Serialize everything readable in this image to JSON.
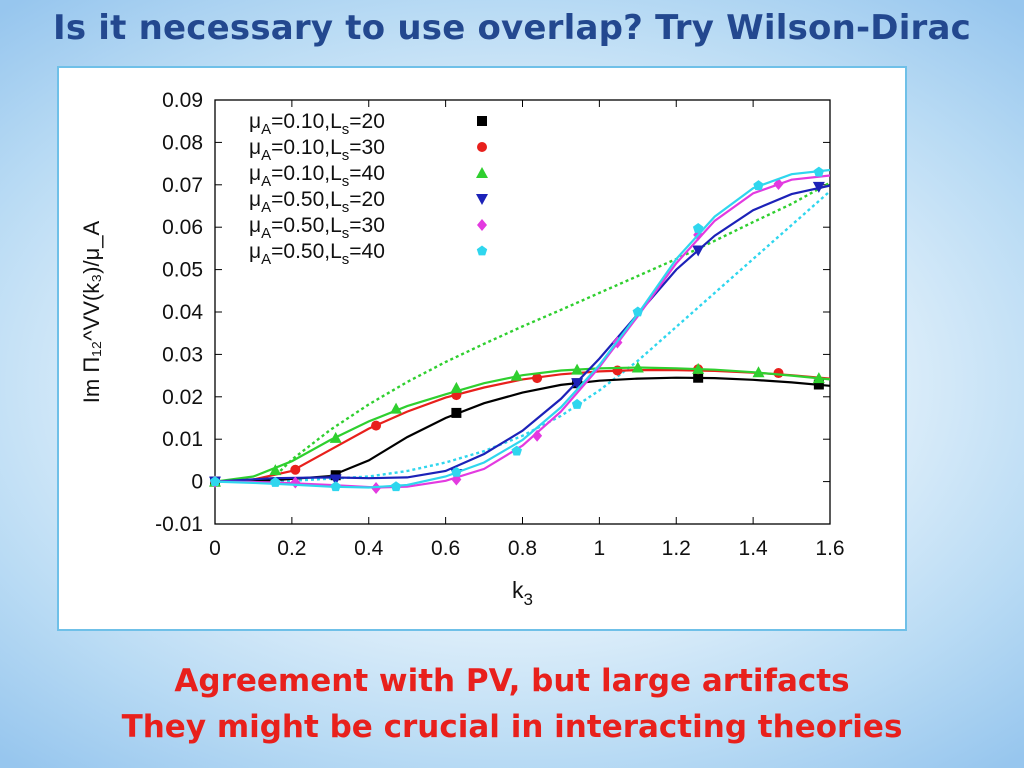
{
  "slide": {
    "title": "Is it necessary to use overlap? Try Wilson-Dirac",
    "caption_lines": [
      "Agreement with PV, but large artifacts",
      "They might be crucial in interacting theories"
    ]
  },
  "chart_data": {
    "type": "line",
    "xlabel_main": "k",
    "xlabel_sub": "3",
    "ylabel": "Im Π₁₂^VV(k₃)/μ_A",
    "xlim": [
      0,
      1.6
    ],
    "ylim": [
      -0.01,
      0.09
    ],
    "xticks": [
      "0",
      "0.2",
      "0.4",
      "0.6",
      "0.8",
      "1",
      "1.2",
      "1.4",
      "1.6"
    ],
    "yticks": [
      "-0.01",
      "0",
      "0.01",
      "0.02",
      "0.03",
      "0.04",
      "0.05",
      "0.06",
      "0.07",
      "0.08",
      "0.09"
    ],
    "grid": false,
    "legend_position": "top-left",
    "series": [
      {
        "name": "μA=0.10,Ls=20",
        "label_parts": {
          "mu_sub": "A",
          "mu_val": "=0.10,L",
          "l_sub": "s",
          "l_val": "=20"
        },
        "color": "#000000",
        "marker": "square",
        "points": [
          [
            0,
            0
          ],
          [
            0.314,
            0.0015
          ],
          [
            0.628,
            0.0162
          ],
          [
            0.942,
            0.0232
          ],
          [
            1.257,
            0.0245
          ],
          [
            1.571,
            0.0229
          ]
        ],
        "curve": [
          [
            0,
            0
          ],
          [
            0.15,
            0.0003
          ],
          [
            0.3,
            0.0013
          ],
          [
            0.4,
            0.005
          ],
          [
            0.5,
            0.0105
          ],
          [
            0.6,
            0.015
          ],
          [
            0.7,
            0.0185
          ],
          [
            0.8,
            0.021
          ],
          [
            0.9,
            0.0228
          ],
          [
            1.0,
            0.0238
          ],
          [
            1.1,
            0.0243
          ],
          [
            1.2,
            0.0245
          ],
          [
            1.3,
            0.0244
          ],
          [
            1.4,
            0.024
          ],
          [
            1.5,
            0.0234
          ],
          [
            1.6,
            0.0226
          ]
        ]
      },
      {
        "name": "μA=0.10,Ls=30",
        "label_parts": {
          "mu_sub": "A",
          "mu_val": "=0.10,L",
          "l_sub": "s",
          "l_val": "=30"
        },
        "color": "#e8201c",
        "marker": "circle",
        "points": [
          [
            0,
            0
          ],
          [
            0.209,
            0.0028
          ],
          [
            0.419,
            0.0132
          ],
          [
            0.628,
            0.0204
          ],
          [
            0.838,
            0.0244
          ],
          [
            1.047,
            0.0262
          ],
          [
            1.257,
            0.0265
          ],
          [
            1.466,
            0.0256
          ]
        ],
        "curve": [
          [
            0,
            0
          ],
          [
            0.1,
            0.0005
          ],
          [
            0.2,
            0.0025
          ],
          [
            0.3,
            0.0075
          ],
          [
            0.4,
            0.0125
          ],
          [
            0.5,
            0.0165
          ],
          [
            0.6,
            0.0198
          ],
          [
            0.7,
            0.0222
          ],
          [
            0.8,
            0.0241
          ],
          [
            0.9,
            0.0253
          ],
          [
            1.0,
            0.026
          ],
          [
            1.1,
            0.0263
          ],
          [
            1.2,
            0.0263
          ],
          [
            1.3,
            0.0261
          ],
          [
            1.4,
            0.0257
          ],
          [
            1.5,
            0.0251
          ],
          [
            1.6,
            0.0243
          ]
        ]
      },
      {
        "name": "μA=0.10,Ls=40",
        "label_parts": {
          "mu_sub": "A",
          "mu_val": "=0.10,L",
          "l_sub": "s",
          "l_val": "=40"
        },
        "color": "#2fcf2f",
        "marker": "triangle-up",
        "points": [
          [
            0,
            0
          ],
          [
            0.157,
            0.0027
          ],
          [
            0.314,
            0.0103
          ],
          [
            0.471,
            0.0172
          ],
          [
            0.628,
            0.0221
          ],
          [
            0.785,
            0.025
          ],
          [
            0.942,
            0.0264
          ],
          [
            1.1,
            0.0269
          ],
          [
            1.257,
            0.0266
          ],
          [
            1.414,
            0.0258
          ],
          [
            1.571,
            0.0244
          ]
        ],
        "curve": [
          [
            0,
            0
          ],
          [
            0.1,
            0.0012
          ],
          [
            0.2,
            0.0048
          ],
          [
            0.3,
            0.0098
          ],
          [
            0.4,
            0.0142
          ],
          [
            0.5,
            0.0178
          ],
          [
            0.6,
            0.0206
          ],
          [
            0.7,
            0.0232
          ],
          [
            0.8,
            0.0251
          ],
          [
            0.9,
            0.0262
          ],
          [
            1.0,
            0.0267
          ],
          [
            1.1,
            0.0269
          ],
          [
            1.2,
            0.0267
          ],
          [
            1.3,
            0.0264
          ],
          [
            1.4,
            0.0258
          ],
          [
            1.5,
            0.025
          ],
          [
            1.6,
            0.0241
          ]
        ]
      },
      {
        "name": "μA=0.50,Ls=20",
        "label_parts": {
          "mu_sub": "A",
          "mu_val": "=0.50,L",
          "l_sub": "s",
          "l_val": "=20"
        },
        "color": "#1c22b8",
        "marker": "triangle-down",
        "points": [
          [
            0,
            0
          ],
          [
            0.314,
            0.0005
          ],
          [
            0.628,
            0.0018
          ],
          [
            0.942,
            0.0232
          ],
          [
            1.257,
            0.0545
          ],
          [
            1.571,
            0.0695
          ]
        ],
        "curve": [
          [
            0,
            0
          ],
          [
            0.15,
            0.0008
          ],
          [
            0.3,
            0.001
          ],
          [
            0.4,
            0.0008
          ],
          [
            0.5,
            0.001
          ],
          [
            0.6,
            0.0025
          ],
          [
            0.7,
            0.0065
          ],
          [
            0.8,
            0.012
          ],
          [
            0.9,
            0.0195
          ],
          [
            1.0,
            0.029
          ],
          [
            1.1,
            0.0395
          ],
          [
            1.2,
            0.05
          ],
          [
            1.3,
            0.058
          ],
          [
            1.4,
            0.064
          ],
          [
            1.5,
            0.0678
          ],
          [
            1.6,
            0.0698
          ]
        ]
      },
      {
        "name": "μA=0.50,Ls=30",
        "label_parts": {
          "mu_sub": "A",
          "mu_val": "=0.50,L",
          "l_sub": "s",
          "l_val": "=30"
        },
        "color": "#e33ae0",
        "marker": "diamond",
        "points": [
          [
            0,
            0
          ],
          [
            0.209,
            -0.0002
          ],
          [
            0.419,
            -0.0015
          ],
          [
            0.628,
            0.0005
          ],
          [
            0.838,
            0.0108
          ],
          [
            1.047,
            0.0328
          ],
          [
            1.257,
            0.0582
          ],
          [
            1.466,
            0.0702
          ]
        ],
        "curve": [
          [
            0,
            0
          ],
          [
            0.15,
            -0.0002
          ],
          [
            0.3,
            -0.0008
          ],
          [
            0.42,
            -0.0014
          ],
          [
            0.5,
            -0.0012
          ],
          [
            0.6,
            0.0002
          ],
          [
            0.7,
            0.003
          ],
          [
            0.8,
            0.0085
          ],
          [
            0.9,
            0.0165
          ],
          [
            1.0,
            0.027
          ],
          [
            1.1,
            0.039
          ],
          [
            1.2,
            0.0515
          ],
          [
            1.3,
            0.0615
          ],
          [
            1.4,
            0.068
          ],
          [
            1.5,
            0.0712
          ],
          [
            1.6,
            0.0722
          ]
        ]
      },
      {
        "name": "μA=0.50,Ls=40",
        "label_parts": {
          "mu_sub": "A",
          "mu_val": "=0.50,L",
          "l_sub": "s",
          "l_val": "=40"
        },
        "color": "#2fd6ee",
        "marker": "pentagon",
        "points": [
          [
            0,
            0
          ],
          [
            0.157,
            -0.0002
          ],
          [
            0.314,
            -0.0012
          ],
          [
            0.471,
            -0.0012
          ],
          [
            0.628,
            0.0022
          ],
          [
            0.785,
            0.0072
          ],
          [
            0.942,
            0.0182
          ],
          [
            1.1,
            0.04
          ],
          [
            1.257,
            0.0597
          ],
          [
            1.414,
            0.0698
          ],
          [
            1.571,
            0.073
          ]
        ],
        "curve": [
          [
            0,
            0
          ],
          [
            0.1,
            -0.0003
          ],
          [
            0.2,
            -0.0007
          ],
          [
            0.3,
            -0.0012
          ],
          [
            0.4,
            -0.0014
          ],
          [
            0.5,
            -0.0008
          ],
          [
            0.6,
            0.0012
          ],
          [
            0.7,
            0.0045
          ],
          [
            0.8,
            0.0098
          ],
          [
            0.9,
            0.0175
          ],
          [
            1.0,
            0.0275
          ],
          [
            1.1,
            0.0395
          ],
          [
            1.2,
            0.0525
          ],
          [
            1.3,
            0.0625
          ],
          [
            1.4,
            0.0692
          ],
          [
            1.5,
            0.0725
          ],
          [
            1.6,
            0.0735
          ]
        ]
      }
    ],
    "reference_curves": [
      {
        "color": "#2fcf2f",
        "style": "dotted",
        "curve": [
          [
            0.17,
            0.0025
          ],
          [
            0.2,
            0.0052
          ],
          [
            0.3,
            0.0122
          ],
          [
            0.4,
            0.0182
          ],
          [
            0.5,
            0.0235
          ],
          [
            0.6,
            0.0282
          ],
          [
            0.7,
            0.0325
          ],
          [
            0.8,
            0.0366
          ],
          [
            0.9,
            0.0405
          ],
          [
            1.0,
            0.0445
          ],
          [
            1.1,
            0.0485
          ],
          [
            1.2,
            0.0525
          ],
          [
            1.3,
            0.0568
          ],
          [
            1.4,
            0.0612
          ],
          [
            1.5,
            0.0655
          ],
          [
            1.6,
            0.0705
          ]
        ]
      },
      {
        "color": "#2fd6ee",
        "style": "dotted",
        "curve": [
          [
            0,
            0
          ],
          [
            0.2,
            0.0002
          ],
          [
            0.4,
            0.0012
          ],
          [
            0.5,
            0.0025
          ],
          [
            0.6,
            0.0045
          ],
          [
            0.7,
            0.0072
          ],
          [
            0.8,
            0.0108
          ],
          [
            0.9,
            0.0155
          ],
          [
            1.0,
            0.0215
          ],
          [
            1.1,
            0.0285
          ],
          [
            1.2,
            0.0365
          ],
          [
            1.3,
            0.0445
          ],
          [
            1.4,
            0.0525
          ],
          [
            1.5,
            0.0605
          ],
          [
            1.6,
            0.0685
          ]
        ]
      }
    ]
  }
}
